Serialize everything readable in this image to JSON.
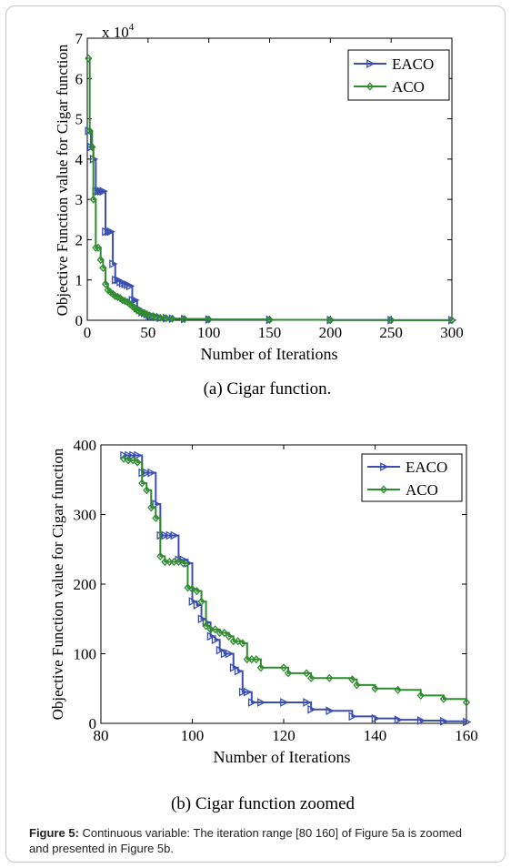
{
  "figure_caption": {
    "label": "Figure 5:",
    "text": "Continuous variable: The iteration range [80 160] of Figure 5a is zoomed and presented in Figure 5b."
  },
  "colors": {
    "eaco": "#3a4fb0",
    "aco": "#2e8b2e",
    "axis": "#000000"
  },
  "chart_data": [
    {
      "type": "line",
      "caption": "(a) Cigar function.",
      "xlabel": "Number of Iterations",
      "ylabel": "Objective Function value for Cigar function",
      "scale_label": "x 10",
      "scale_exponent": "4",
      "xlim": [
        0,
        300
      ],
      "ylim": [
        0,
        7
      ],
      "xticks": [
        0,
        50,
        100,
        150,
        200,
        250,
        300
      ],
      "yticks": [
        0,
        1,
        2,
        3,
        4,
        5,
        6,
        7
      ],
      "legend_position": "top-right",
      "series": [
        {
          "name": "EACO",
          "marker": "triangle-right",
          "x": [
            1,
            3,
            5,
            7,
            9,
            11,
            13,
            15,
            17,
            19,
            21,
            23,
            25,
            27,
            29,
            31,
            33,
            35,
            37,
            39,
            41,
            43,
            45,
            47,
            49,
            51,
            54,
            57,
            60,
            65,
            70,
            80,
            100,
            150,
            200,
            250,
            300
          ],
          "y": [
            4.7,
            4.3,
            4.0,
            3.2,
            3.2,
            3.2,
            3.2,
            2.2,
            2.2,
            2.2,
            1.4,
            1.0,
            1.0,
            0.95,
            0.92,
            0.9,
            0.88,
            0.85,
            0.5,
            0.5,
            0.3,
            0.25,
            0.2,
            0.18,
            0.15,
            0.12,
            0.1,
            0.08,
            0.06,
            0.05,
            0.04,
            0.03,
            0.02,
            0.01,
            0.005,
            0.003,
            0.002
          ]
        },
        {
          "name": "ACO",
          "marker": "diamond",
          "x": [
            1,
            2,
            4,
            5,
            7,
            9,
            11,
            13,
            15,
            17,
            19,
            21,
            23,
            25,
            27,
            29,
            31,
            33,
            35,
            37,
            39,
            41,
            43,
            45,
            47,
            49,
            51,
            54,
            57,
            60,
            65,
            70,
            80,
            100,
            150,
            200,
            250,
            300
          ],
          "y": [
            6.5,
            4.7,
            4.3,
            3.0,
            1.8,
            1.8,
            1.5,
            1.3,
            0.9,
            0.75,
            0.7,
            0.65,
            0.6,
            0.58,
            0.55,
            0.5,
            0.48,
            0.45,
            0.4,
            0.35,
            0.3,
            0.25,
            0.22,
            0.2,
            0.18,
            0.15,
            0.12,
            0.1,
            0.08,
            0.06,
            0.05,
            0.04,
            0.03,
            0.02,
            0.01,
            0.006,
            0.004,
            0.003
          ]
        }
      ]
    },
    {
      "type": "line",
      "caption": "(b) Cigar function zoomed",
      "xlabel": "Number of Iterations",
      "ylabel": "Objective Function value for Cigar function",
      "xlim": [
        80,
        160
      ],
      "ylim": [
        0,
        400
      ],
      "xticks": [
        80,
        100,
        120,
        140,
        160
      ],
      "yticks": [
        0,
        100,
        200,
        300,
        400
      ],
      "legend_position": "top-right",
      "series": [
        {
          "name": "EACO",
          "marker": "triangle-right",
          "x": [
            85,
            86,
            87,
            88,
            89,
            90,
            91,
            92,
            93,
            94,
            95,
            96,
            97,
            98,
            99,
            100,
            101,
            102,
            103,
            104,
            105,
            106,
            107,
            108,
            109,
            110,
            111,
            112,
            113,
            115,
            120,
            125,
            126,
            130,
            135,
            140,
            145,
            150,
            155,
            160
          ],
          "y": [
            385,
            385,
            385,
            385,
            360,
            360,
            360,
            315,
            270,
            270,
            270,
            270,
            235,
            235,
            230,
            175,
            170,
            150,
            145,
            125,
            120,
            105,
            100,
            100,
            80,
            75,
            45,
            45,
            30,
            30,
            30,
            30,
            20,
            18,
            10,
            7,
            5,
            4,
            3,
            2
          ]
        },
        {
          "name": "ACO",
          "marker": "diamond",
          "x": [
            85,
            86,
            87,
            88,
            89,
            90,
            91,
            92,
            93,
            94,
            95,
            96,
            97,
            98,
            99,
            100,
            101,
            102,
            103,
            104,
            105,
            106,
            107,
            108,
            109,
            110,
            111,
            112,
            113,
            114,
            115,
            120,
            121,
            125,
            126,
            130,
            135,
            136,
            140,
            145,
            150,
            155,
            160
          ],
          "y": [
            380,
            378,
            378,
            375,
            345,
            335,
            310,
            295,
            240,
            232,
            232,
            232,
            232,
            230,
            195,
            193,
            190,
            175,
            140,
            135,
            135,
            130,
            130,
            125,
            118,
            118,
            115,
            92,
            92,
            92,
            80,
            80,
            72,
            72,
            65,
            65,
            63,
            55,
            50,
            48,
            40,
            35,
            30
          ]
        }
      ]
    }
  ]
}
